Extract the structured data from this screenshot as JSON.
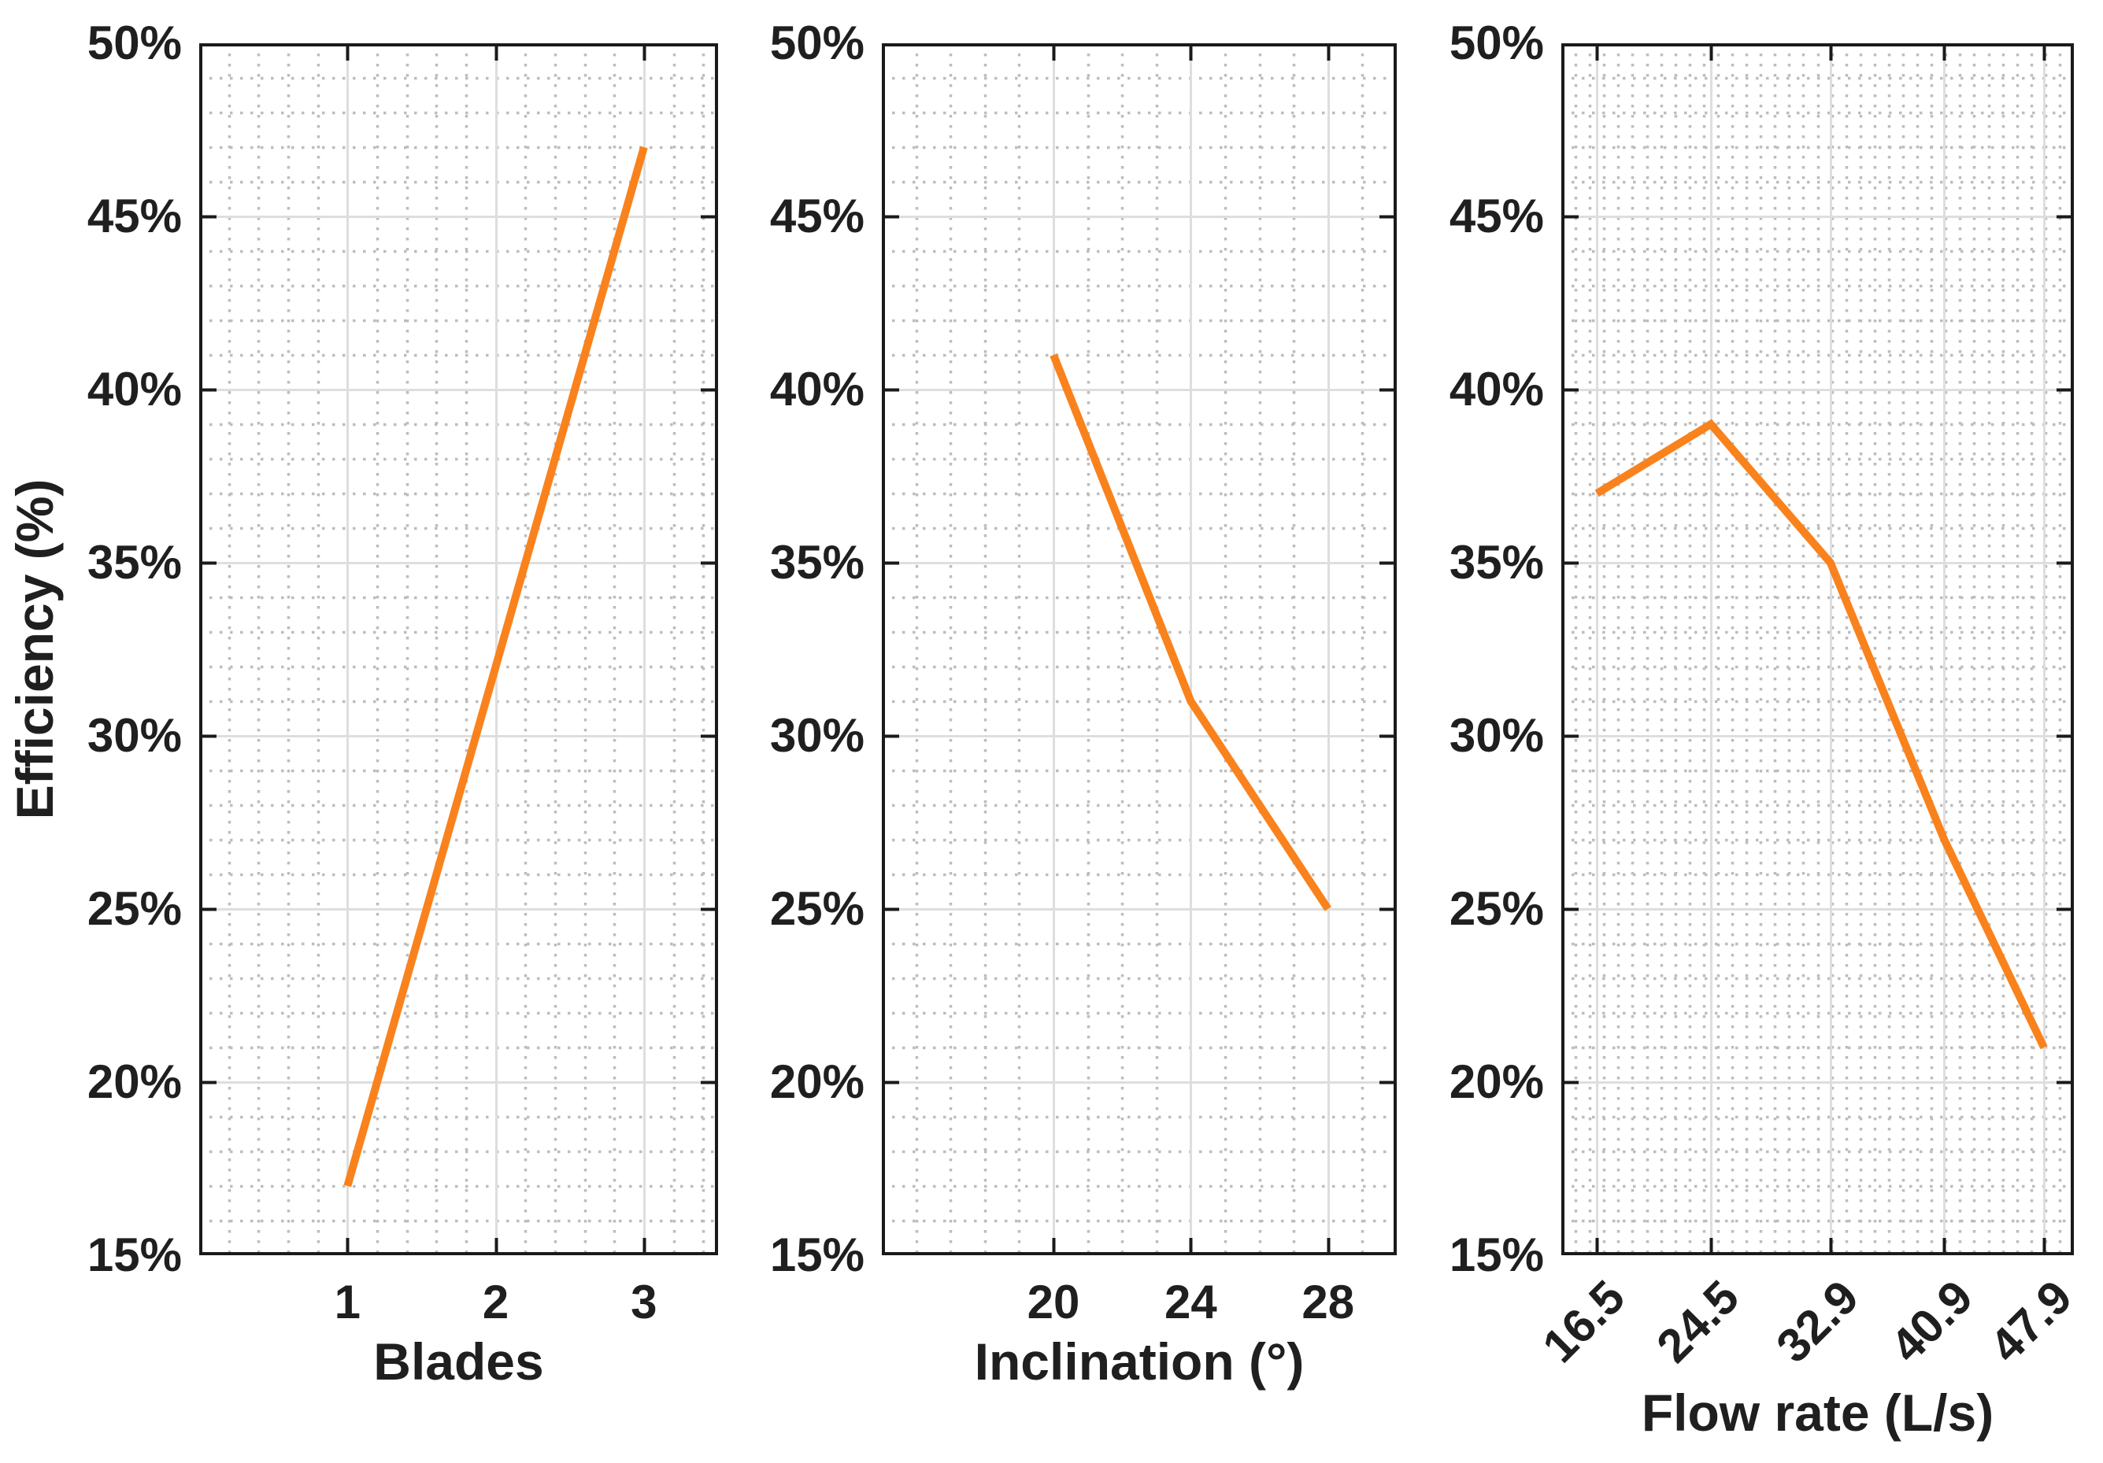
{
  "figure": {
    "ylabel": "Efficiency (%)",
    "y_tick_labels": [
      "50%",
      "45%",
      "40%",
      "35%",
      "30%",
      "25%",
      "20%",
      "15%"
    ],
    "style": {
      "line_color": "#F9821D",
      "axis_color": "#1a1a1a",
      "text_color": "#1f1f1f",
      "major_grid_color": "#dedede",
      "minor_grid_color": "#bdbdbd",
      "background": "#ffffff"
    },
    "subplots": [
      {
        "xlabel": "Blades",
        "x_tick_labels": [
          "1",
          "2",
          "3"
        ]
      },
      {
        "xlabel": "Inclination (°)",
        "x_tick_labels": [
          "20",
          "24",
          "28"
        ]
      },
      {
        "xlabel": "Flow rate (L/s)",
        "x_tick_labels": [
          "16.5",
          "24.5",
          "32.9",
          "40.9",
          "47.9"
        ],
        "x_tick_rotation_deg": 45
      }
    ]
  },
  "chart_data": [
    {
      "type": "line",
      "title": "",
      "xlabel": "Blades",
      "ylabel": "Efficiency (%)",
      "x": [
        1,
        2,
        3
      ],
      "values": [
        17,
        32,
        47
      ],
      "xticks": [
        1,
        2,
        3
      ],
      "x_tick_labels": [
        "1",
        "2",
        "3"
      ],
      "xlim": [
        0,
        3.5
      ],
      "ylim": [
        15,
        50
      ],
      "yticks": [
        15,
        20,
        25,
        30,
        35,
        40,
        45,
        50
      ],
      "y_tick_suffix": "%",
      "x_minor_step": 0.2,
      "y_minor_step": 1,
      "grid": "major solid + minor dotted",
      "legend": "none",
      "line_color": "#F9821D"
    },
    {
      "type": "line",
      "title": "",
      "xlabel": "Inclination (°)",
      "ylabel": "Efficiency (%)",
      "x": [
        20,
        24,
        28
      ],
      "values": [
        41,
        31,
        25
      ],
      "xticks": [
        20,
        24,
        28
      ],
      "x_tick_labels": [
        "20",
        "24",
        "28"
      ],
      "xlim": [
        15,
        30
      ],
      "ylim": [
        15,
        50
      ],
      "yticks": [
        15,
        20,
        25,
        30,
        35,
        40,
        45,
        50
      ],
      "y_tick_suffix": "%",
      "x_minor_step": 1,
      "y_minor_step": 1,
      "grid": "major solid + minor dotted",
      "legend": "none",
      "line_color": "#F9821D"
    },
    {
      "type": "line",
      "title": "",
      "xlabel": "Flow rate (L/s)",
      "ylabel": "Efficiency (%)",
      "x": [
        16.5,
        24.5,
        32.9,
        40.9,
        47.9
      ],
      "values": [
        37,
        39,
        35,
        27,
        21
      ],
      "xticks": [
        16.5,
        24.5,
        32.9,
        40.9,
        47.9
      ],
      "x_tick_labels": [
        "16.5",
        "24.5",
        "32.9",
        "40.9",
        "47.9"
      ],
      "x_tick_rotation_deg": 45,
      "xlim": [
        14,
        50
      ],
      "ylim": [
        15,
        50
      ],
      "yticks": [
        15,
        20,
        25,
        30,
        35,
        40,
        45,
        50
      ],
      "y_tick_suffix": "%",
      "x_minor_step": 1,
      "y_minor_step": 1,
      "grid": "major solid + minor dotted",
      "legend": "none",
      "line_color": "#F9821D"
    }
  ]
}
